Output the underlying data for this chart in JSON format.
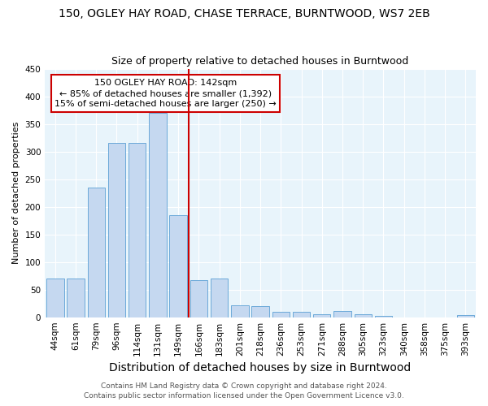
{
  "title": "150, OGLEY HAY ROAD, CHASE TERRACE, BURNTWOOD, WS7 2EB",
  "subtitle": "Size of property relative to detached houses in Burntwood",
  "xlabel": "Distribution of detached houses by size in Burntwood",
  "ylabel": "Number of detached properties",
  "categories": [
    "44sqm",
    "61sqm",
    "79sqm",
    "96sqm",
    "114sqm",
    "131sqm",
    "149sqm",
    "166sqm",
    "183sqm",
    "201sqm",
    "218sqm",
    "236sqm",
    "253sqm",
    "271sqm",
    "288sqm",
    "305sqm",
    "323sqm",
    "340sqm",
    "358sqm",
    "375sqm",
    "393sqm"
  ],
  "values": [
    70,
    70,
    235,
    315,
    315,
    370,
    185,
    67,
    70,
    22,
    20,
    10,
    10,
    6,
    11,
    5,
    3,
    0,
    0,
    0,
    4
  ],
  "bar_color": "#c5d8f0",
  "bar_edge_color": "#5a9fd4",
  "vline_x": 6.5,
  "vline_color": "#cc0000",
  "annotation_text": "150 OGLEY HAY ROAD: 142sqm\n← 85% of detached houses are smaller (1,392)\n15% of semi-detached houses are larger (250) →",
  "annotation_box_color": "#ffffff",
  "annotation_box_edge": "#cc0000",
  "ylim": [
    0,
    450
  ],
  "yticks": [
    0,
    50,
    100,
    150,
    200,
    250,
    300,
    350,
    400,
    450
  ],
  "footer1": "Contains HM Land Registry data © Crown copyright and database right 2024.",
  "footer2": "Contains public sector information licensed under the Open Government Licence v3.0.",
  "plot_bg_color": "#e8f4fb",
  "title_fontsize": 10,
  "subtitle_fontsize": 9,
  "xlabel_fontsize": 10,
  "ylabel_fontsize": 8,
  "tick_fontsize": 7.5,
  "footer_fontsize": 6.5,
  "annotation_fontsize": 8
}
